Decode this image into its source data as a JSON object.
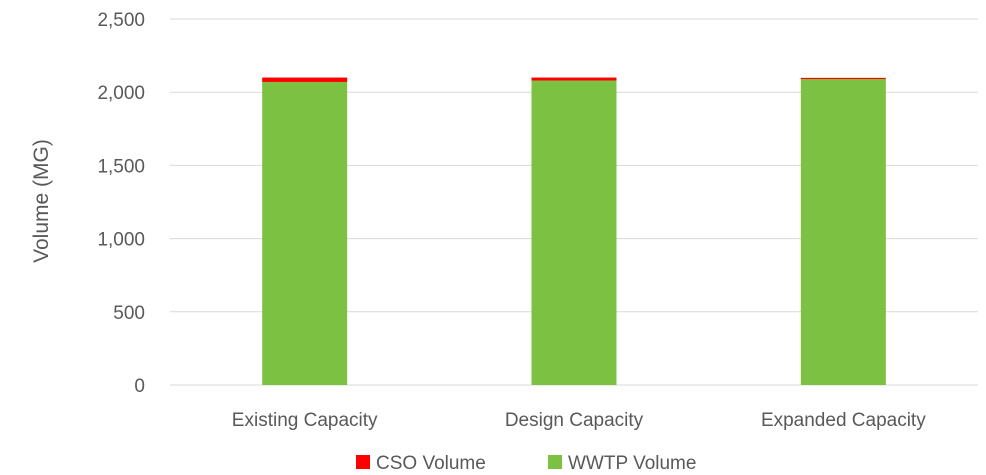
{
  "chart_data": {
    "type": "bar",
    "stacked": true,
    "categories": [
      "Existing Capacity",
      "Design Capacity",
      "Expanded Capacity"
    ],
    "series": [
      {
        "name": "WWTP Volume",
        "color": "#7dc142",
        "values": [
          2070,
          2080,
          2090
        ]
      },
      {
        "name": "CSO Volume",
        "color": "#ff0000",
        "values": [
          30,
          20,
          8
        ]
      }
    ],
    "ylabel": "Volume (MG)",
    "xlabel": "",
    "ylim": [
      0,
      2500
    ],
    "yticks": [
      0,
      500,
      1000,
      1500,
      2000,
      2500
    ],
    "ytick_labels": [
      "0",
      "500",
      "1,000",
      "1,500",
      "2,000",
      "2,500"
    ],
    "grid": true,
    "legend": {
      "placement": "bottom",
      "order": [
        "CSO Volume",
        "WWTP Volume"
      ]
    }
  }
}
